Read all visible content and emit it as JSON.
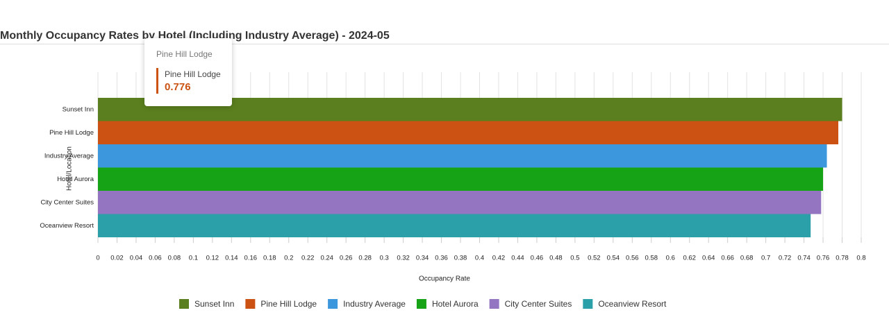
{
  "chart_data": {
    "type": "barh",
    "title": "Monthly Occupancy Rates by Hotel (Including Industry Average) - 2024-05",
    "x_label": "Occupancy Rate",
    "y_label": "Hotel/Location",
    "categories": [
      "Sunset Inn",
      "Pine Hill Lodge",
      "Industry Average",
      "Hotel Aurora",
      "City Center Suites",
      "Oceanview Resort"
    ],
    "values": [
      0.78,
      0.776,
      0.764,
      0.76,
      0.758,
      0.747
    ],
    "colors": [
      "#5b7f1e",
      "#cb5212",
      "#3d97dc",
      "#16a316",
      "#9375c1",
      "#2ba0a8"
    ],
    "xlim": [
      0,
      0.8
    ],
    "xticks": [
      0,
      0.02,
      0.04,
      0.06,
      0.08,
      0.1,
      0.12,
      0.14,
      0.16,
      0.18,
      0.2,
      0.22,
      0.24,
      0.26,
      0.28,
      0.3,
      0.32,
      0.34,
      0.36,
      0.38,
      0.4,
      0.42,
      0.44,
      0.46,
      0.48,
      0.5,
      0.52,
      0.54,
      0.56,
      0.58,
      0.6,
      0.62,
      0.64,
      0.66,
      0.68,
      0.7,
      0.72,
      0.74,
      0.76,
      0.78,
      0.8
    ],
    "grid": true,
    "legend": "bottom",
    "tooltip": {
      "category": 1
    }
  }
}
